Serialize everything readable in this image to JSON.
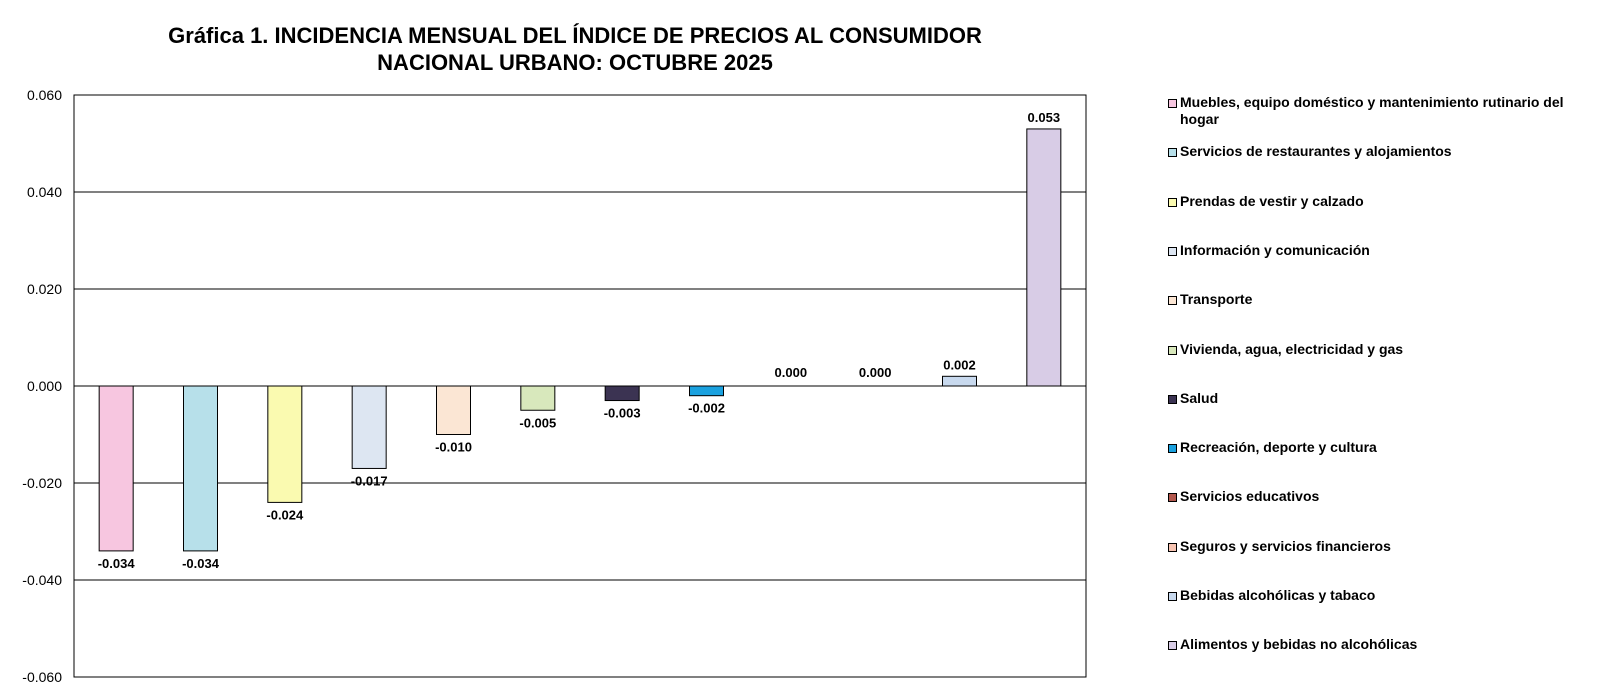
{
  "chart_data": {
    "type": "bar",
    "title": "Gráfica 1.  INCIDENCIA MENSUAL DEL ÍNDICE DE PRECIOS AL CONSUMIDOR",
    "subtitle": "NACIONAL URBANO: OCTUBRE 2025",
    "xlabel": "",
    "ylabel": "",
    "ylim": [
      -0.06,
      0.06
    ],
    "yticks": [
      "0.060",
      "0.040",
      "0.020",
      "0.000",
      "-0.020",
      "-0.040",
      "-0.060"
    ],
    "grid": true,
    "legend_position": "right",
    "categories": [
      "Muebles, equipo doméstico y mantenimiento rutinario del hogar",
      "Servicios de restaurantes y alojamientos",
      "Prendas de vestir y calzado",
      "Información y comunicación",
      "Transporte",
      "Vivienda, agua, electricidad y gas",
      "Salud",
      "Recreación, deporte y cultura",
      "Servicios educativos",
      "Seguros y servicios financieros",
      "Bebidas alcohólicas y tabaco",
      "Alimentos y bebidas no alcohólicas"
    ],
    "values": [
      -0.034,
      -0.034,
      -0.024,
      -0.017,
      -0.01,
      -0.005,
      -0.003,
      -0.002,
      0.0,
      0.0,
      0.002,
      0.053
    ],
    "data_labels": [
      "-0.034",
      "-0.034",
      "-0.024",
      "-0.017",
      "-0.010",
      "-0.005",
      "-0.003",
      "-0.002",
      "0.000",
      "0.000",
      "0.002",
      "0.053"
    ],
    "colors": [
      "#f7c6e0",
      "#b7e0ea",
      "#fafab0",
      "#dde6f2",
      "#fbe6d4",
      "#d8e8bc",
      "#3b3352",
      "#1aa1df",
      "#b2574d",
      "#f7c4b2",
      "#c8d9ee",
      "#d8cce6"
    ]
  }
}
